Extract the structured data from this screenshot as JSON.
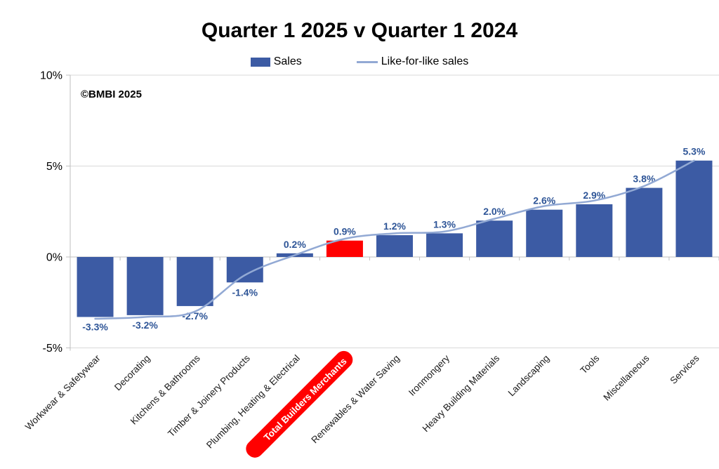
{
  "watermark": "©BMBI 2025",
  "colors": {
    "bar": "#3C5BA4",
    "bar_highlight": "#FF0000",
    "line": "#92A9D4",
    "data_label": "#2E5597",
    "gridline": "#D9D9D9",
    "axis": "#BFBFBF",
    "category_label": "#1A1A1A",
    "badge_text": "#FFFFFF"
  },
  "chart_data": {
    "type": "bar",
    "title": "Quarter 1 2025 v Quarter 1 2024",
    "categories": [
      "Workwear & Safetywear",
      "Decorating",
      "Kitchens & Bathrooms",
      "Timber & Joinery Products",
      "Plumbing, Heating & Electrical",
      "Total Builders Merchants",
      "Renewables & Water Saving",
      "Ironmongery",
      "Heavy Building Materials",
      "Landscaping",
      "Tools",
      "Miscellaneous",
      "Services"
    ],
    "series": [
      {
        "name": "Sales",
        "type": "bar",
        "values": [
          -3.3,
          -3.2,
          -2.7,
          -1.4,
          0.2,
          0.9,
          1.2,
          1.3,
          2.0,
          2.6,
          2.9,
          3.8,
          5.3
        ]
      },
      {
        "name": "Like-for-like sales",
        "type": "line",
        "values": [
          -3.4,
          -3.3,
          -3.0,
          -1.0,
          0.1,
          1.0,
          1.3,
          1.4,
          2.1,
          2.8,
          3.1,
          3.9,
          5.3
        ]
      }
    ],
    "data_labels": [
      "-3.3%",
      "-3.2%",
      "-2.7%",
      "-1.4%",
      "0.2%",
      "0.9%",
      "1.2%",
      "1.3%",
      "2.0%",
      "2.6%",
      "2.9%",
      "3.8%",
      "5.3%"
    ],
    "highlight_index": 5,
    "highlight_category": "Total Builders Merchants",
    "yticks": [
      {
        "label": "10%",
        "value": 10
      },
      {
        "label": "5%",
        "value": 5
      },
      {
        "label": "0%",
        "value": 0
      },
      {
        "label": "-5%",
        "value": -5
      }
    ],
    "ylim": [
      -5,
      10
    ],
    "grid": true,
    "legend_position": "top"
  }
}
